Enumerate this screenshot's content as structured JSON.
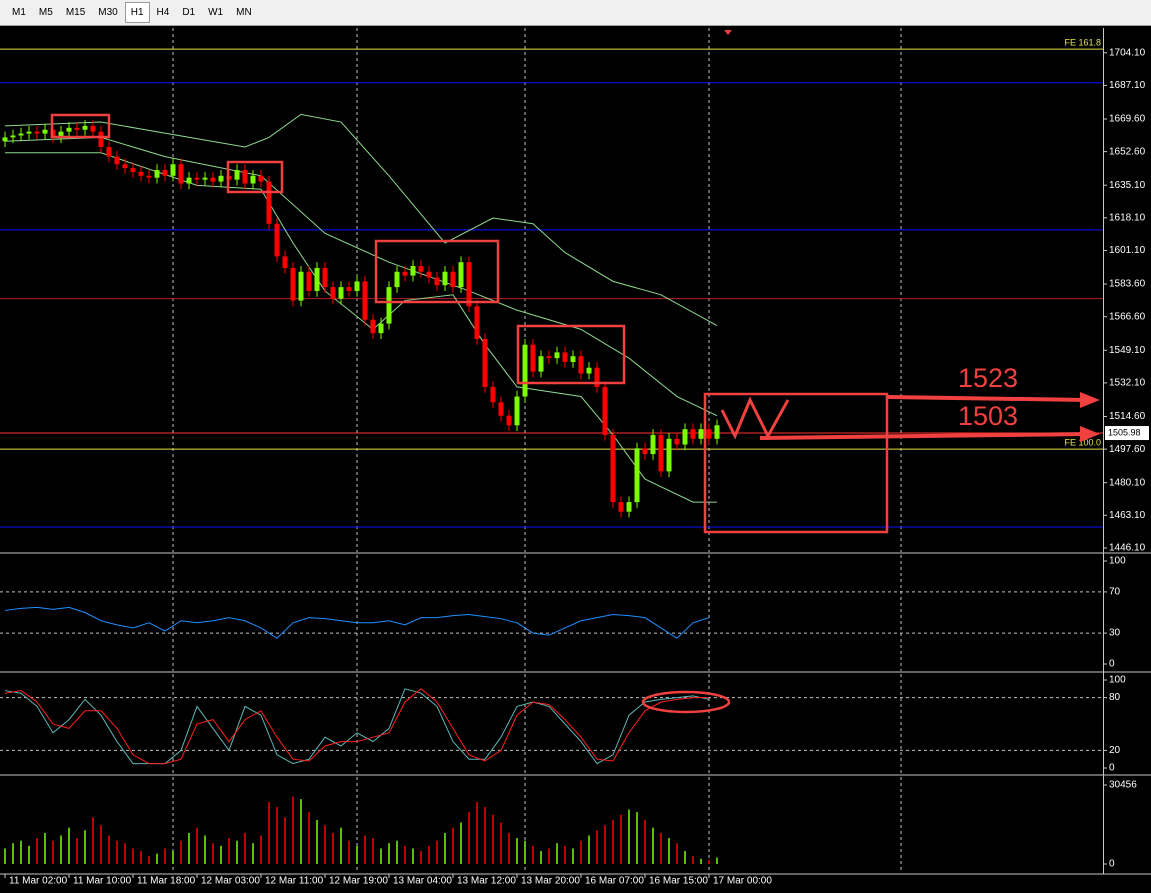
{
  "toolbar": {
    "buttons": [
      "M1",
      "M5",
      "M15",
      "M30",
      "H1",
      "H4",
      "D1",
      "W1",
      "MN"
    ],
    "selected": 4
  },
  "chart_data": [
    {
      "type": "candlestick",
      "open": [
        1658,
        1660,
        1661,
        1662,
        1663,
        1662,
        1664,
        1660,
        1663,
        1665,
        1664,
        1666,
        1663,
        1655,
        1650,
        1646,
        1644,
        1642,
        1640,
        1639,
        1643,
        1640,
        1646,
        1636,
        1639,
        1638,
        1639,
        1637,
        1640,
        1638,
        1643,
        1636,
        1640,
        1637,
        1615,
        1598,
        1592,
        1575,
        1590,
        1580,
        1592,
        1582,
        1576,
        1582,
        1580,
        1585,
        1565,
        1558,
        1563,
        1582,
        1590,
        1588,
        1593,
        1590,
        1587,
        1583,
        1590,
        1582,
        1595,
        1572,
        1555,
        1530,
        1522,
        1515,
        1510,
        1525,
        1552,
        1538,
        1546,
        1545,
        1548,
        1543,
        1546,
        1537,
        1540,
        1530,
        1505,
        1470,
        1465,
        1470,
        1498,
        1495,
        1505,
        1486,
        1503,
        1500,
        1508,
        1503,
        1508,
        1503
      ],
      "high": [
        1663,
        1664,
        1665,
        1666,
        1666,
        1667,
        1667,
        1666,
        1668,
        1668,
        1669,
        1669,
        1666,
        1658,
        1653,
        1649,
        1647,
        1645,
        1643,
        1646,
        1646,
        1649,
        1649,
        1642,
        1642,
        1642,
        1642,
        1643,
        1643,
        1646,
        1646,
        1643,
        1643,
        1640,
        1618,
        1601,
        1595,
        1593,
        1593,
        1595,
        1595,
        1585,
        1585,
        1585,
        1588,
        1588,
        1568,
        1566,
        1585,
        1593,
        1593,
        1596,
        1596,
        1593,
        1590,
        1593,
        1593,
        1598,
        1598,
        1575,
        1558,
        1533,
        1525,
        1518,
        1528,
        1555,
        1555,
        1549,
        1549,
        1551,
        1551,
        1549,
        1549,
        1543,
        1543,
        1533,
        1508,
        1473,
        1473,
        1501,
        1501,
        1508,
        1508,
        1506,
        1506,
        1511,
        1511,
        1511,
        1511,
        1513
      ],
      "low": [
        1655,
        1657,
        1658,
        1659,
        1659,
        1659,
        1657,
        1657,
        1660,
        1661,
        1661,
        1660,
        1652,
        1647,
        1643,
        1641,
        1639,
        1637,
        1636,
        1636,
        1637,
        1637,
        1633,
        1633,
        1635,
        1635,
        1634,
        1634,
        1635,
        1635,
        1633,
        1633,
        1634,
        1612,
        1595,
        1589,
        1572,
        1572,
        1577,
        1577,
        1579,
        1573,
        1573,
        1577,
        1577,
        1562,
        1555,
        1555,
        1560,
        1579,
        1585,
        1585,
        1587,
        1584,
        1580,
        1580,
        1579,
        1579,
        1569,
        1552,
        1527,
        1519,
        1512,
        1507,
        1507,
        1522,
        1535,
        1535,
        1542,
        1542,
        1540,
        1540,
        1534,
        1534,
        1527,
        1502,
        1467,
        1462,
        1462,
        1467,
        1492,
        1492,
        1483,
        1483,
        1497,
        1497,
        1500,
        1500,
        1500,
        1500
      ],
      "close": [
        1660,
        1661,
        1662,
        1663,
        1662,
        1664,
        1660,
        1663,
        1665,
        1664,
        1666,
        1663,
        1655,
        1650,
        1646,
        1644,
        1642,
        1640,
        1639,
        1643,
        1640,
        1646,
        1636,
        1639,
        1638,
        1639,
        1637,
        1640,
        1638,
        1643,
        1636,
        1640,
        1637,
        1615,
        1598,
        1592,
        1575,
        1590,
        1580,
        1592,
        1582,
        1576,
        1582,
        1580,
        1585,
        1565,
        1558,
        1563,
        1582,
        1590,
        1588,
        1593,
        1590,
        1587,
        1583,
        1590,
        1582,
        1595,
        1572,
        1555,
        1530,
        1522,
        1515,
        1510,
        1525,
        1552,
        1538,
        1546,
        1545,
        1548,
        1543,
        1546,
        1537,
        1540,
        1530,
        1505,
        1470,
        1465,
        1470,
        1498,
        1495,
        1505,
        1486,
        1503,
        1500,
        1508,
        1503,
        1508,
        1503,
        1510
      ],
      "up_color": "#7cfc00",
      "down_color": "#ff0000",
      "overlays": [
        {
          "color": "#8fd98f",
          "x": [
            0,
            12,
            30,
            33,
            37,
            42,
            48,
            55,
            61,
            66,
            70,
            76,
            82,
            89
          ],
          "values": [
            1666,
            1668,
            1655,
            1660,
            1672,
            1668,
            1640,
            1605,
            1618,
            1615,
            1600,
            1585,
            1578,
            1562
          ]
        },
        {
          "color": "#8fd98f",
          "x": [
            0,
            12,
            20,
            32,
            40,
            48,
            58,
            64,
            72,
            78,
            84,
            89
          ],
          "values": [
            1658,
            1660,
            1650,
            1640,
            1610,
            1595,
            1580,
            1570,
            1560,
            1545,
            1525,
            1515
          ]
        },
        {
          "color": "#8fd98f",
          "x": [
            0,
            12,
            24,
            32,
            36,
            40,
            46,
            50,
            56,
            60,
            64,
            72,
            76,
            80,
            86,
            89
          ],
          "values": [
            1652,
            1652,
            1635,
            1633,
            1605,
            1580,
            1560,
            1575,
            1578,
            1552,
            1530,
            1525,
            1505,
            1482,
            1470,
            1470
          ]
        }
      ],
      "levels": [
        {
          "value": 1706,
          "color": "#e6e64c",
          "label": "FE 161.8"
        },
        {
          "value": 1688.5,
          "color": "#1010ff"
        },
        {
          "value": 1611.8,
          "color": "#1010ff"
        },
        {
          "value": 1576,
          "color": "#b22222"
        },
        {
          "value": 1497.6,
          "color": "#e6e64c",
          "label": "FE 100.0"
        },
        {
          "value": 1457,
          "color": "#1010ff"
        }
      ],
      "last_price": 1505.98,
      "last_price_color": "#ff3030",
      "annotations": [
        "1523",
        "1503"
      ],
      "ylim": [
        1444,
        1717
      ],
      "yticks": [
        {
          "value": 1704.1,
          "label": "1704.10"
        },
        {
          "value": 1687.1,
          "label": "1687.10"
        },
        {
          "value": 1669.6,
          "label": "1669.60"
        },
        {
          "value": 1652.6,
          "label": "1652.60"
        },
        {
          "value": 1635.1,
          "label": "1635.10"
        },
        {
          "value": 1618.1,
          "label": "1618.10"
        },
        {
          "value": 1601.1,
          "label": "1601.10"
        },
        {
          "value": 1583.6,
          "label": "1583.60"
        },
        {
          "value": 1566.6,
          "label": "1566.60"
        },
        {
          "value": 1549.1,
          "label": "1549.10"
        },
        {
          "value": 1532.1,
          "label": "1532.10"
        },
        {
          "value": 1514.6,
          "label": "1514.60"
        },
        {
          "value": 1497.6,
          "label": "1497.60"
        },
        {
          "value": 1480.1,
          "label": "1480.10"
        },
        {
          "value": 1463.1,
          "label": "1463.10"
        },
        {
          "value": 1446.1,
          "label": "1446.10"
        }
      ],
      "xlim": [
        -0.625,
        137.25
      ],
      "xgrid": [
        21,
        44,
        65,
        88,
        112
      ],
      "xticks": [
        {
          "value": 0,
          "label": "11 Mar 02:00"
        },
        {
          "value": 8,
          "label": "11 Mar 10:00"
        },
        {
          "value": 16,
          "label": "11 Mar 18:00"
        },
        {
          "value": 24,
          "label": "12 Mar 03:00"
        },
        {
          "value": 32,
          "label": "12 Mar 11:00"
        },
        {
          "value": 40,
          "label": "12 Mar 19:00"
        },
        {
          "value": 48,
          "label": "13 Mar 04:00"
        },
        {
          "value": 56,
          "label": "13 Mar 12:00"
        },
        {
          "value": 64,
          "label": "13 Mar 20:00"
        },
        {
          "value": 72,
          "label": "16 Mar 07:00"
        },
        {
          "value": 80,
          "label": "16 Mar 15:00"
        },
        {
          "value": 88,
          "label": "17 Mar 00:00"
        }
      ]
    },
    {
      "type": "line",
      "ylim": [
        0,
        100
      ],
      "yticks": [
        100,
        70,
        30,
        0
      ],
      "x": [
        0,
        2,
        4,
        6,
        8,
        10,
        12,
        14,
        16,
        18,
        20,
        22,
        24,
        26,
        28,
        30,
        32,
        34,
        36,
        38,
        40,
        42,
        44,
        46,
        48,
        50,
        52,
        54,
        56,
        58,
        60,
        62,
        64,
        66,
        68,
        70,
        72,
        74,
        76,
        78,
        80,
        82,
        84,
        86,
        88
      ],
      "series": [
        {
          "color": "#1e90ff",
          "values": [
            52,
            54,
            55,
            53,
            55,
            50,
            42,
            38,
            35,
            40,
            32,
            42,
            40,
            42,
            45,
            42,
            35,
            25,
            40,
            45,
            44,
            42,
            40,
            40,
            42,
            38,
            45,
            45,
            47,
            48,
            46,
            44,
            40,
            30,
            28,
            35,
            42,
            45,
            48,
            47,
            45,
            35,
            25,
            40,
            45
          ]
        }
      ]
    },
    {
      "type": "line",
      "ylim": [
        0,
        100
      ],
      "yticks": [
        100,
        80,
        20,
        0
      ],
      "x": [
        0,
        2,
        4,
        6,
        8,
        10,
        12,
        14,
        16,
        18,
        20,
        22,
        24,
        26,
        28,
        30,
        32,
        34,
        36,
        38,
        40,
        42,
        44,
        46,
        48,
        50,
        52,
        54,
        56,
        58,
        60,
        62,
        64,
        66,
        68,
        70,
        72,
        74,
        76,
        78,
        80,
        82,
        84,
        86,
        88
      ],
      "series": [
        {
          "color": "#5fb7b7",
          "values": [
            88,
            85,
            70,
            40,
            55,
            78,
            60,
            30,
            5,
            5,
            5,
            20,
            70,
            45,
            20,
            70,
            60,
            15,
            5,
            10,
            35,
            25,
            40,
            30,
            45,
            90,
            85,
            70,
            30,
            10,
            10,
            35,
            70,
            75,
            70,
            50,
            30,
            5,
            15,
            60,
            75,
            78,
            80,
            82,
            78
          ]
        },
        {
          "color": "#ff2020",
          "values": [
            85,
            88,
            75,
            50,
            45,
            65,
            65,
            45,
            15,
            5,
            5,
            10,
            50,
            55,
            30,
            55,
            65,
            35,
            10,
            8,
            25,
            30,
            30,
            35,
            40,
            75,
            90,
            75,
            45,
            15,
            8,
            20,
            60,
            75,
            72,
            55,
            35,
            10,
            8,
            40,
            65,
            75,
            78,
            80,
            80
          ]
        }
      ]
    },
    {
      "type": "bar",
      "ylim": [
        0,
        30456
      ],
      "yticks": [
        30456,
        0
      ],
      "values": [
        6000,
        8000,
        9000,
        7000,
        10000,
        12000,
        9000,
        11000,
        14000,
        10000,
        13000,
        18000,
        15000,
        11000,
        9000,
        8000,
        6000,
        5000,
        3000,
        4000,
        6000,
        5000,
        9000,
        12000,
        14000,
        11000,
        8000,
        7000,
        10000,
        9000,
        12000,
        8000,
        11000,
        24000,
        22000,
        18000,
        26000,
        25000,
        20000,
        17000,
        15000,
        12000,
        14000,
        9000,
        7000,
        11000,
        10000,
        6000,
        8000,
        9000,
        7000,
        6000,
        5000,
        7000,
        9000,
        12000,
        14000,
        16000,
        20000,
        24000,
        22000,
        19000,
        16000,
        12000,
        10000,
        9000,
        7000,
        5000,
        6000,
        8000,
        7000,
        6000,
        9000,
        11000,
        13000,
        15000,
        17000,
        19000,
        21000,
        20000,
        17000,
        14000,
        12000,
        10000,
        8000,
        5000,
        3000,
        2000,
        1500,
        2500
      ]
    }
  ]
}
